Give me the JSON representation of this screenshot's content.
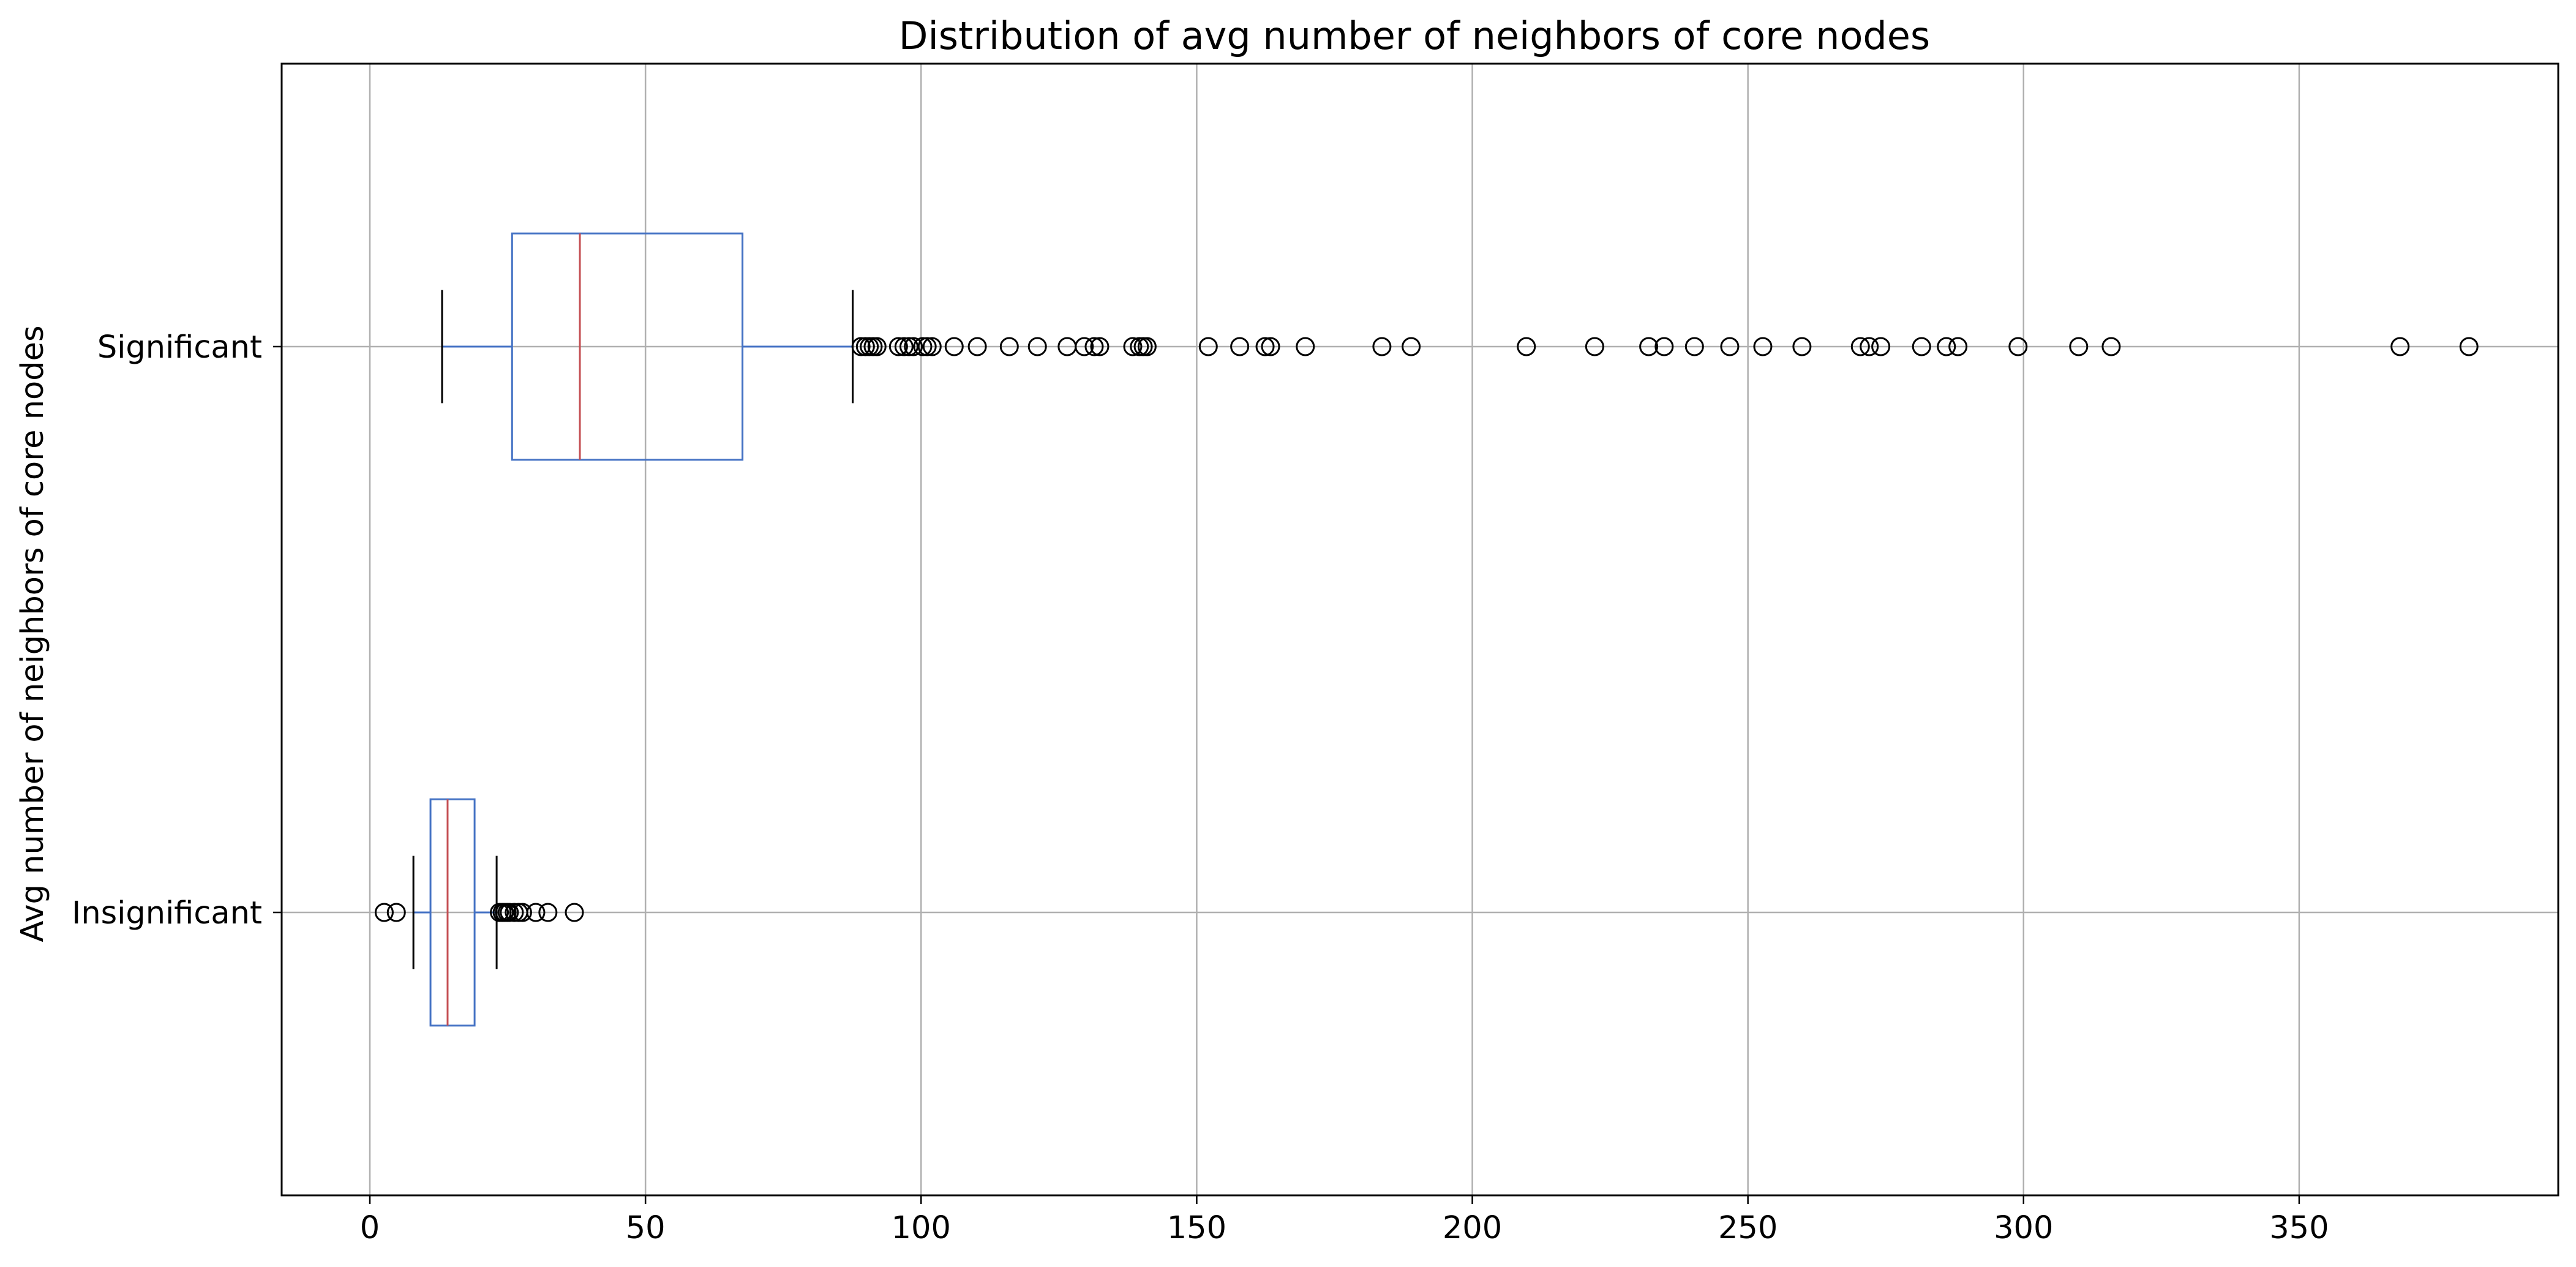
{
  "chart_data": {
    "type": "boxplot",
    "orientation": "horizontal",
    "title": "Distribution of avg number of neighbors of core nodes",
    "xlabel": "",
    "ylabel": "Avg number of neighbors of core nodes",
    "xlim": [
      -16,
      397
    ],
    "x_ticks": [
      0,
      50,
      100,
      150,
      200,
      250,
      300,
      350
    ],
    "x_tick_labels": [
      "0",
      "50",
      "100",
      "150",
      "200",
      "250",
      "300",
      "350"
    ],
    "grid": true,
    "colors": {
      "box": "#4472c4",
      "median": "#c44e52",
      "whisker": "#000000",
      "grid": "#b0b0b0",
      "flier": "#000000"
    },
    "series": [
      {
        "name": "Insignificant",
        "q1": 11,
        "median": 14.1,
        "q3": 19,
        "whisker_low": 7.9,
        "whisker_high": 23,
        "fliers": [
          2.6,
          4.8,
          23.5,
          24.0,
          24.4,
          24.9,
          25.3,
          26.2,
          27.0,
          27.7,
          30.1,
          32.3,
          37.1
        ]
      },
      {
        "name": "Significant",
        "q1": 25.8,
        "median": 38.1,
        "q3": 67.6,
        "whisker_low": 13.1,
        "whisker_high": 87.6,
        "fliers": [
          89.1,
          89.9,
          90.6,
          91.3,
          92.0,
          95.9,
          96.9,
          97.8,
          98.6,
          100.3,
          101.1,
          102.0,
          106.0,
          110.2,
          116.0,
          121.1,
          126.5,
          129.6,
          131.4,
          132.4,
          138.4,
          139.6,
          140.3,
          141.0,
          152.1,
          157.8,
          162.4,
          163.4,
          169.7,
          183.6,
          188.9,
          209.8,
          222.2,
          232.0,
          234.8,
          240.3,
          246.7,
          252.7,
          259.8,
          270.4,
          272.0,
          274.1,
          281.5,
          286.0,
          288.1,
          299.0,
          310.0,
          315.9,
          368.3,
          380.8
        ]
      }
    ]
  }
}
